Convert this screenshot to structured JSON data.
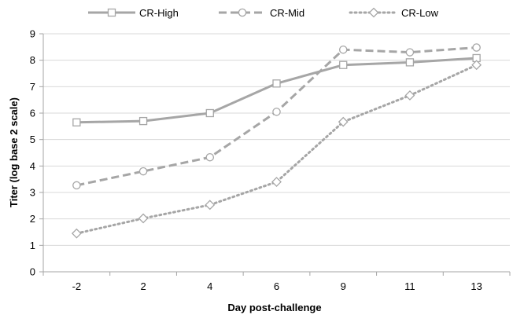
{
  "chart_data": {
    "type": "line",
    "xlabel": "Day post-challenge",
    "ylabel": "Titer (log base 2 scale)",
    "categories": [
      "-2",
      "2",
      "4",
      "6",
      "9",
      "11",
      "13"
    ],
    "ylim": [
      0,
      9
    ],
    "yticks": [
      "0",
      "1",
      "2",
      "3",
      "4",
      "5",
      "6",
      "7",
      "8",
      "9"
    ],
    "grid": "horizontal",
    "legend_position": "top",
    "series": [
      {
        "name": "CR-High",
        "values": [
          5.65,
          5.7,
          6.0,
          7.12,
          7.82,
          7.92,
          8.08
        ],
        "color": "#a6a6a6",
        "line_style": "solid",
        "marker": "square"
      },
      {
        "name": "CR-Mid",
        "values": [
          3.27,
          3.8,
          4.33,
          6.05,
          8.4,
          8.3,
          8.48
        ],
        "color": "#a6a6a6",
        "line_style": "dashed",
        "marker": "circle"
      },
      {
        "name": "CR-Low",
        "values": [
          1.45,
          2.02,
          2.53,
          3.4,
          5.67,
          6.67,
          7.82
        ],
        "color": "#a6a6a6",
        "line_style": "dotted",
        "marker": "diamond"
      }
    ]
  }
}
